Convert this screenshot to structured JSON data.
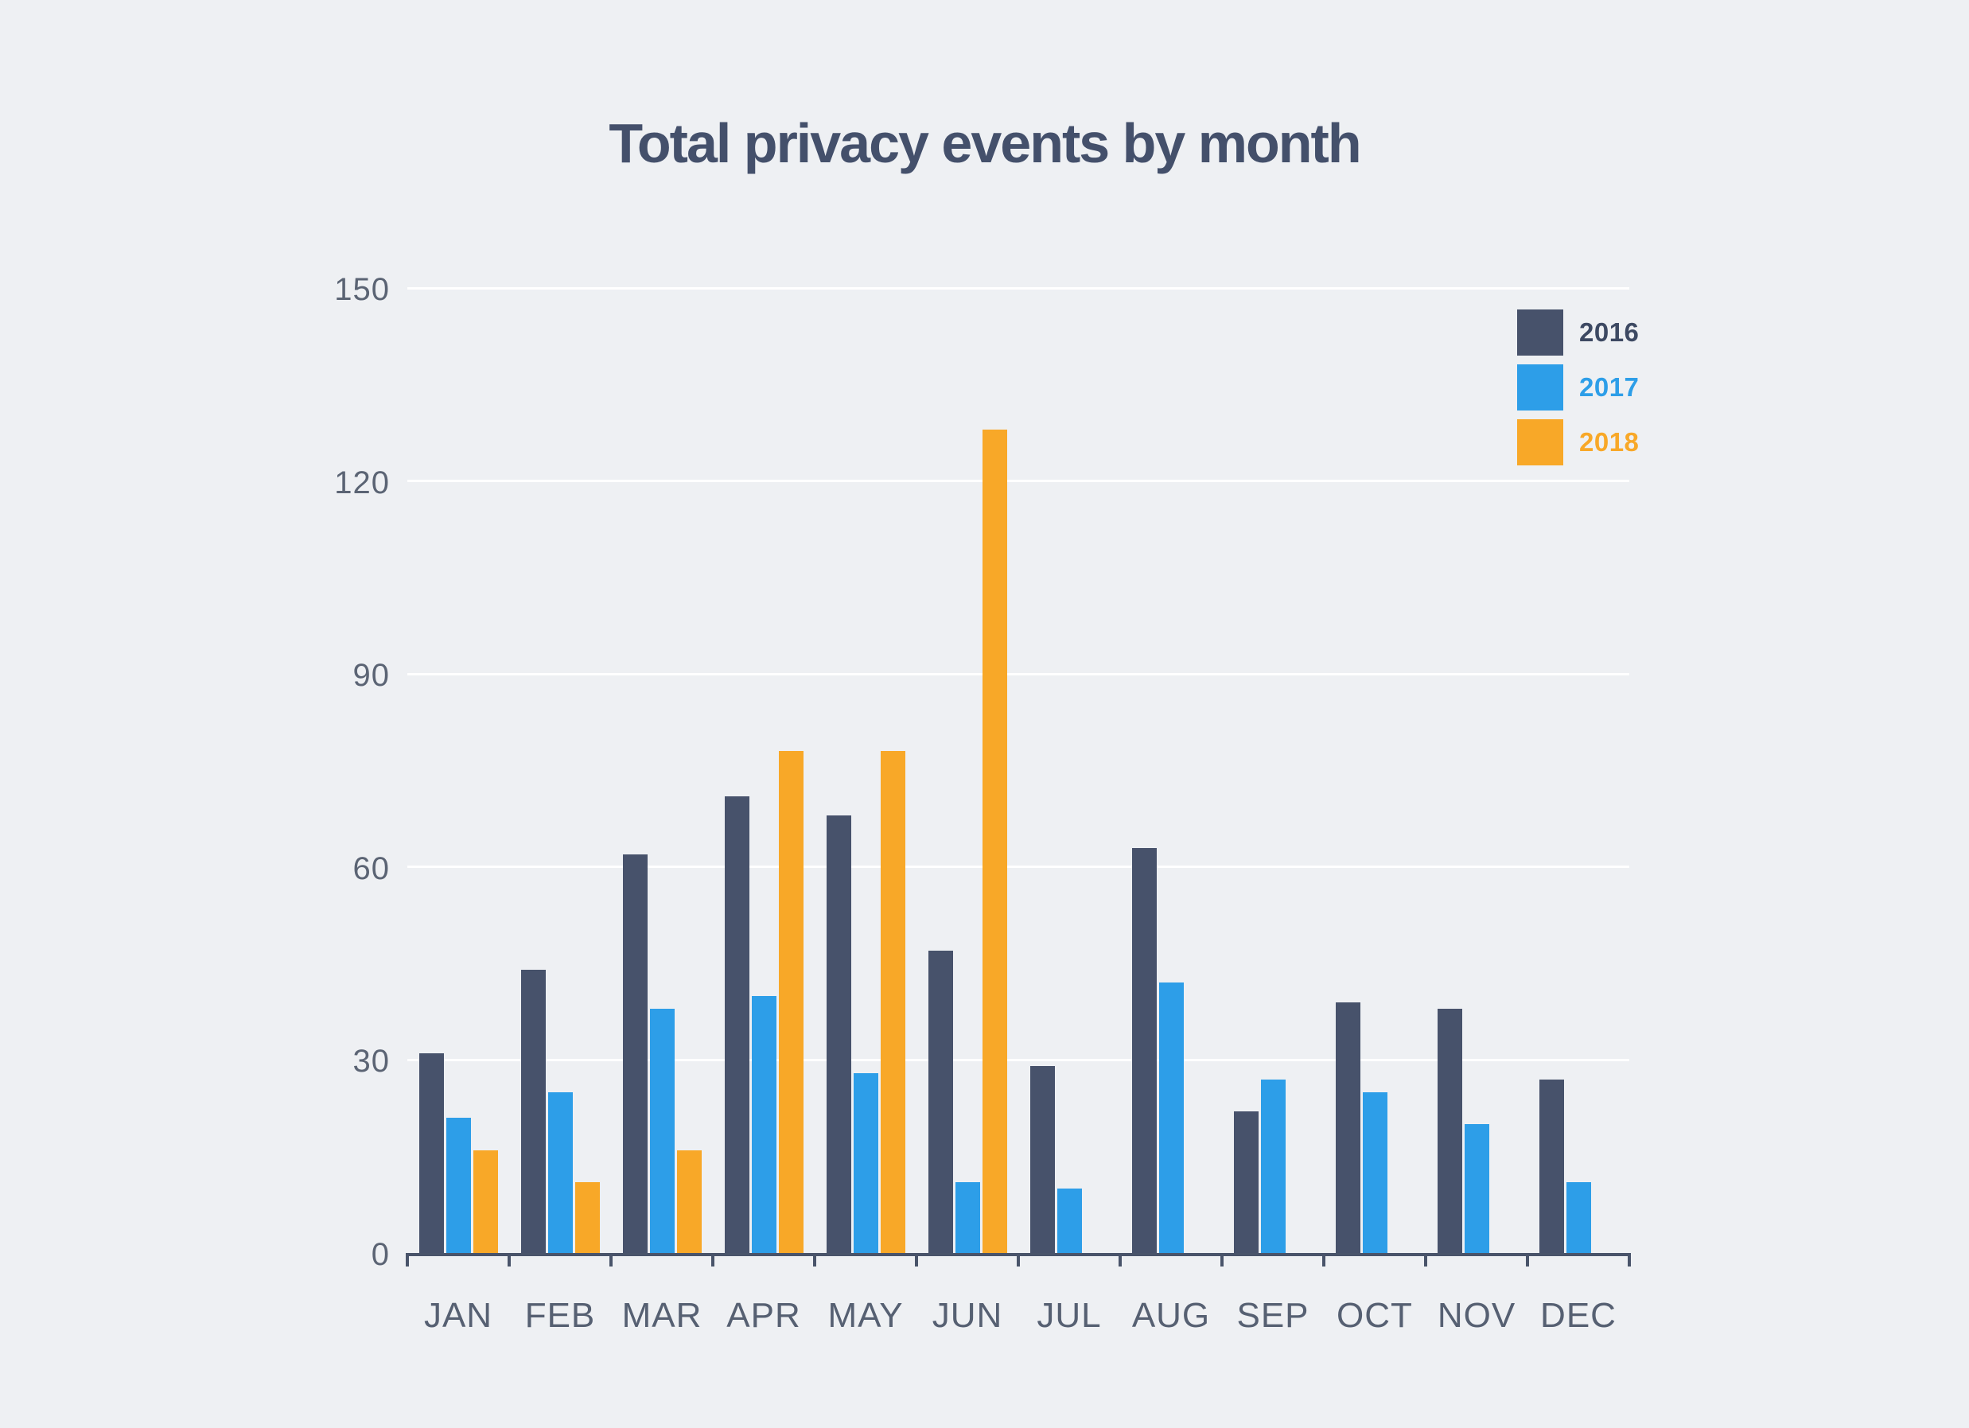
{
  "chart_data": {
    "type": "bar",
    "title": "Total privacy events by month",
    "categories": [
      "JAN",
      "FEB",
      "MAR",
      "APR",
      "MAY",
      "JUN",
      "JUL",
      "AUG",
      "SEP",
      "OCT",
      "NOV",
      "DEC"
    ],
    "series": [
      {
        "name": "2016",
        "color": "#47526B",
        "label_color": "#3D4962",
        "values": [
          31,
          44,
          62,
          71,
          68,
          47,
          29,
          63,
          22,
          39,
          38,
          27
        ]
      },
      {
        "name": "2017",
        "color": "#2D9EE8",
        "label_color": "#2D9EE8",
        "values": [
          21,
          25,
          38,
          40,
          28,
          11,
          10,
          42,
          27,
          25,
          20,
          11
        ]
      },
      {
        "name": "2018",
        "color": "#F8A828",
        "label_color": "#F8A828",
        "values": [
          16,
          11,
          16,
          78,
          78,
          128,
          0,
          0,
          0,
          0,
          0,
          0
        ]
      }
    ],
    "xlabel": "",
    "ylabel": "",
    "ylim": [
      0,
      150
    ],
    "yticks": [
      0,
      30,
      60,
      90,
      120,
      150
    ],
    "grid": true,
    "gridline_color": "#FFFFFF",
    "background_color": "#EEF0F3",
    "axis_color": "#49546A",
    "tick_label_color": "#5B6474",
    "title_color": "#44506B",
    "legend_position": "top-right"
  }
}
